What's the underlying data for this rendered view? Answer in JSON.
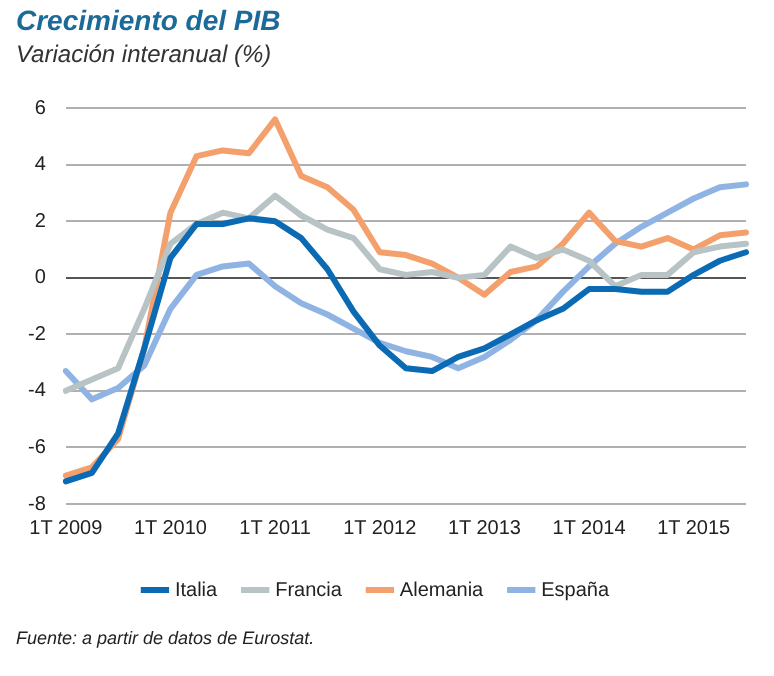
{
  "chart_data": {
    "type": "line",
    "title": "Crecimiento del PIB",
    "subtitle": "Variación interanual (%)",
    "categories": [
      "1T 2009",
      null,
      null,
      null,
      "1T 2010",
      null,
      null,
      null,
      "1T 2011",
      null,
      null,
      null,
      "1T 2012",
      null,
      null,
      null,
      "1T 2013",
      null,
      null,
      null,
      "1T 2014",
      null,
      null,
      null,
      "1T 2015",
      null,
      null
    ],
    "series": [
      {
        "name": "Italia",
        "color": "#0a6ab4",
        "values": [
          -7.2,
          -6.9,
          -5.5,
          -2.5,
          0.7,
          1.9,
          1.9,
          2.1,
          2.0,
          1.4,
          0.3,
          -1.2,
          -2.4,
          -3.2,
          -3.3,
          -2.8,
          -2.5,
          -2.0,
          -1.5,
          -1.1,
          -0.4,
          -0.4,
          -0.5,
          -0.5,
          0.1,
          0.6,
          0.9
        ]
      },
      {
        "name": "Francia",
        "color": "#b8c3c6",
        "values": [
          -4.0,
          -3.6,
          -3.2,
          -1.1,
          1.2,
          1.9,
          2.3,
          2.1,
          2.9,
          2.2,
          1.7,
          1.4,
          0.3,
          0.1,
          0.2,
          0.0,
          0.1,
          1.1,
          0.7,
          1.0,
          0.6,
          -0.3,
          0.1,
          0.1,
          0.9,
          1.1,
          1.2
        ]
      },
      {
        "name": "Alemania",
        "color": "#f4a06c",
        "values": [
          -7.0,
          -6.7,
          -5.7,
          -2.5,
          2.3,
          4.3,
          4.5,
          4.4,
          5.6,
          3.6,
          3.2,
          2.4,
          0.9,
          0.8,
          0.5,
          0.0,
          -0.6,
          0.2,
          0.4,
          1.2,
          2.3,
          1.3,
          1.1,
          1.4,
          1.0,
          1.5,
          1.6
        ]
      },
      {
        "name": "España",
        "color": "#8fb4e3",
        "values": [
          -3.3,
          -4.3,
          -3.9,
          -3.1,
          -1.1,
          0.1,
          0.4,
          0.5,
          -0.3,
          -0.9,
          -1.3,
          -1.8,
          -2.3,
          -2.6,
          -2.8,
          -3.2,
          -2.8,
          -2.2,
          -1.5,
          -0.5,
          0.4,
          1.2,
          1.8,
          2.3,
          2.8,
          3.2,
          3.3
        ]
      }
    ],
    "ylim": [
      -8,
      6
    ],
    "yticks": [
      -8,
      -6,
      -4,
      -2,
      0,
      2,
      4,
      6
    ],
    "grid": "y",
    "legend": "bottom",
    "marker": "none",
    "line_style": "solid",
    "annotations": [
      "Fuente: a partir de datos de Eurostat."
    ]
  }
}
